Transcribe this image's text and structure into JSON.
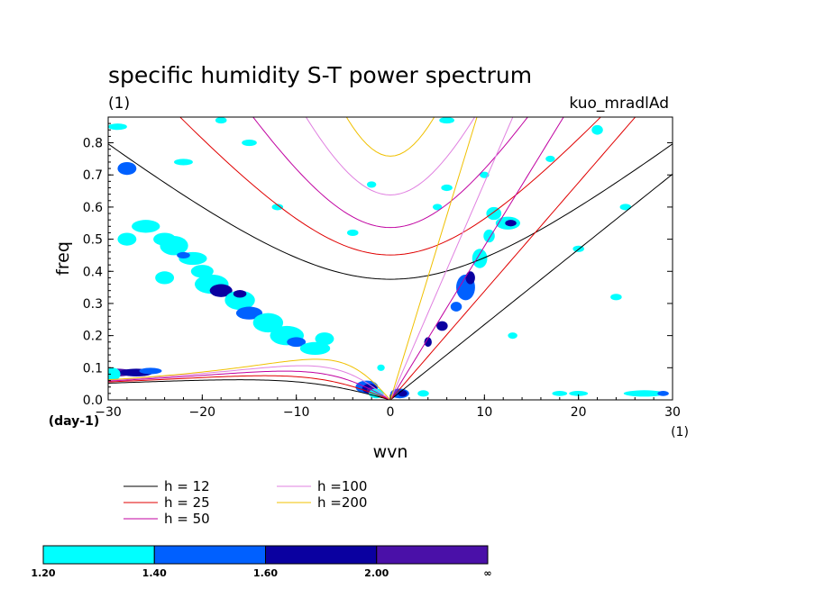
{
  "chart_data": {
    "type": "heatmap",
    "title": "specific humidity S-T power spectrum",
    "subtitle_left": "(1)",
    "subtitle_right": "kuo_mradlAd",
    "xlabel": "wvn",
    "ylabel": "freq",
    "x_unit": "(1)",
    "y_unit": "(day-1)",
    "xlim": [
      -30,
      30
    ],
    "ylim": [
      0,
      0.88
    ],
    "x_ticks": [
      -30,
      -20,
      -10,
      0,
      10,
      20,
      30
    ],
    "x_tick_labels": [
      "−30",
      "−20",
      "−10",
      "0",
      "10",
      "20",
      "30"
    ],
    "y_ticks": [
      0,
      0.1,
      0.2,
      0.3,
      0.4,
      0.5,
      0.6,
      0.7,
      0.8
    ],
    "y_tick_labels": [
      "0.0",
      "0.1",
      "0.2",
      "0.3",
      "0.4",
      "0.5",
      "0.6",
      "0.7",
      "0.8"
    ],
    "contour_levels": [
      {
        "min": "1.20",
        "max": "1.40",
        "color": "#00ffff"
      },
      {
        "min": "1.40",
        "max": "1.60",
        "color": "#0060ff"
      },
      {
        "min": "1.60",
        "max": "2.00",
        "color": "#0a00a0"
      },
      {
        "min": "2.00",
        "max": "∞",
        "color": "#4a10a8"
      }
    ],
    "colorbar_labels": [
      "1.20",
      "1.40",
      "1.60",
      "2.00",
      "∞"
    ],
    "dispersion_curves": [
      {
        "label": "h = 12",
        "h": 12,
        "color": "#000000"
      },
      {
        "label": "h = 25",
        "h": 25,
        "color": "#e00000"
      },
      {
        "label": "h = 50",
        "h": 50,
        "color": "#c000a0"
      },
      {
        "label": "h =100",
        "h": 100,
        "color": "#e080e0"
      },
      {
        "label": "h =200",
        "h": 200,
        "color": "#f0c000"
      }
    ],
    "blobs": [
      {
        "x": -29,
        "y": 0.085,
        "rx": 1.6,
        "ry": 0.012,
        "level": 3
      },
      {
        "x": -27,
        "y": 0.085,
        "rx": 1.8,
        "ry": 0.012,
        "level": 2
      },
      {
        "x": -25.5,
        "y": 0.09,
        "rx": 1.2,
        "ry": 0.01,
        "level": 1
      },
      {
        "x": -29.5,
        "y": 0.08,
        "rx": 0.8,
        "ry": 0.02,
        "level": 0
      },
      {
        "x": -28,
        "y": 0.72,
        "rx": 1.0,
        "ry": 0.02,
        "level": 1
      },
      {
        "x": -26,
        "y": 0.54,
        "rx": 1.5,
        "ry": 0.02,
        "level": 0
      },
      {
        "x": -24,
        "y": 0.5,
        "rx": 1.2,
        "ry": 0.02,
        "level": 0
      },
      {
        "x": -23,
        "y": 0.48,
        "rx": 1.5,
        "ry": 0.03,
        "level": 0
      },
      {
        "x": -21,
        "y": 0.44,
        "rx": 1.5,
        "ry": 0.02,
        "level": 0
      },
      {
        "x": -22,
        "y": 0.45,
        "rx": 0.7,
        "ry": 0.01,
        "level": 1
      },
      {
        "x": -20,
        "y": 0.4,
        "rx": 1.2,
        "ry": 0.02,
        "level": 0
      },
      {
        "x": -19,
        "y": 0.36,
        "rx": 1.8,
        "ry": 0.03,
        "level": 0
      },
      {
        "x": -18,
        "y": 0.34,
        "rx": 1.2,
        "ry": 0.02,
        "level": 2
      },
      {
        "x": -16,
        "y": 0.31,
        "rx": 1.6,
        "ry": 0.03,
        "level": 0
      },
      {
        "x": -16,
        "y": 0.33,
        "rx": 0.7,
        "ry": 0.012,
        "level": 2
      },
      {
        "x": -15,
        "y": 0.27,
        "rx": 1.4,
        "ry": 0.02,
        "level": 1
      },
      {
        "x": -13,
        "y": 0.24,
        "rx": 1.6,
        "ry": 0.03,
        "level": 0
      },
      {
        "x": -11,
        "y": 0.2,
        "rx": 1.8,
        "ry": 0.03,
        "level": 0
      },
      {
        "x": -10,
        "y": 0.18,
        "rx": 1.0,
        "ry": 0.015,
        "level": 1
      },
      {
        "x": -8,
        "y": 0.16,
        "rx": 1.6,
        "ry": 0.02,
        "level": 0
      },
      {
        "x": -7,
        "y": 0.19,
        "rx": 1.0,
        "ry": 0.02,
        "level": 0
      },
      {
        "x": -24,
        "y": 0.38,
        "rx": 1.0,
        "ry": 0.02,
        "level": 0
      },
      {
        "x": -28,
        "y": 0.5,
        "rx": 1.0,
        "ry": 0.02,
        "level": 0
      },
      {
        "x": -2.5,
        "y": 0.04,
        "rx": 1.2,
        "ry": 0.02,
        "level": 1
      },
      {
        "x": -2.2,
        "y": 0.035,
        "rx": 0.8,
        "ry": 0.015,
        "level": 2
      },
      {
        "x": -2,
        "y": 0.03,
        "rx": 0.5,
        "ry": 0.01,
        "level": 3
      },
      {
        "x": -1.5,
        "y": 0.02,
        "rx": 0.8,
        "ry": 0.015,
        "level": 0
      },
      {
        "x": 1,
        "y": 0.02,
        "rx": 1.0,
        "ry": 0.015,
        "level": 1
      },
      {
        "x": 1.3,
        "y": 0.02,
        "rx": 0.5,
        "ry": 0.01,
        "level": 2
      },
      {
        "x": -1,
        "y": 0.1,
        "rx": 0.4,
        "ry": 0.01,
        "level": 0
      },
      {
        "x": 4,
        "y": 0.18,
        "rx": 0.4,
        "ry": 0.015,
        "level": 2
      },
      {
        "x": 5.5,
        "y": 0.23,
        "rx": 0.6,
        "ry": 0.015,
        "level": 2
      },
      {
        "x": 7,
        "y": 0.29,
        "rx": 0.6,
        "ry": 0.015,
        "level": 1
      },
      {
        "x": 8,
        "y": 0.35,
        "rx": 1.0,
        "ry": 0.04,
        "level": 1
      },
      {
        "x": 8.5,
        "y": 0.38,
        "rx": 0.5,
        "ry": 0.02,
        "level": 2
      },
      {
        "x": 9.5,
        "y": 0.44,
        "rx": 0.8,
        "ry": 0.03,
        "level": 0
      },
      {
        "x": 10.5,
        "y": 0.51,
        "rx": 0.6,
        "ry": 0.02,
        "level": 0
      },
      {
        "x": 12.5,
        "y": 0.55,
        "rx": 1.3,
        "ry": 0.02,
        "level": 0
      },
      {
        "x": 12.8,
        "y": 0.55,
        "rx": 0.6,
        "ry": 0.01,
        "level": 2
      },
      {
        "x": 11,
        "y": 0.58,
        "rx": 0.8,
        "ry": 0.02,
        "level": 0
      },
      {
        "x": 5,
        "y": 0.6,
        "rx": 0.5,
        "ry": 0.01,
        "level": 0
      },
      {
        "x": 6,
        "y": 0.87,
        "rx": 0.8,
        "ry": 0.01,
        "level": 0
      },
      {
        "x": 22,
        "y": 0.84,
        "rx": 0.6,
        "ry": 0.015,
        "level": 0
      },
      {
        "x": 24,
        "y": 0.32,
        "rx": 0.6,
        "ry": 0.01,
        "level": 0
      },
      {
        "x": 20,
        "y": 0.47,
        "rx": 0.6,
        "ry": 0.01,
        "level": 0
      },
      {
        "x": 27,
        "y": 0.02,
        "rx": 2.2,
        "ry": 0.01,
        "level": 0
      },
      {
        "x": 29,
        "y": 0.02,
        "rx": 0.6,
        "ry": 0.008,
        "level": 1
      },
      {
        "x": 20,
        "y": 0.02,
        "rx": 1.0,
        "ry": 0.008,
        "level": 0
      },
      {
        "x": 18,
        "y": 0.02,
        "rx": 0.8,
        "ry": 0.008,
        "level": 0
      },
      {
        "x": -22,
        "y": 0.74,
        "rx": 1.0,
        "ry": 0.01,
        "level": 0
      },
      {
        "x": -15,
        "y": 0.8,
        "rx": 0.8,
        "ry": 0.01,
        "level": 0
      },
      {
        "x": -29,
        "y": 0.85,
        "rx": 1.0,
        "ry": 0.01,
        "level": 0
      },
      {
        "x": -18,
        "y": 0.87,
        "rx": 0.6,
        "ry": 0.01,
        "level": 0
      },
      {
        "x": -2,
        "y": 0.67,
        "rx": 0.5,
        "ry": 0.01,
        "level": 0
      },
      {
        "x": 6,
        "y": 0.66,
        "rx": 0.6,
        "ry": 0.01,
        "level": 0
      },
      {
        "x": 10,
        "y": 0.7,
        "rx": 0.5,
        "ry": 0.01,
        "level": 0
      },
      {
        "x": 17,
        "y": 0.75,
        "rx": 0.5,
        "ry": 0.01,
        "level": 0
      },
      {
        "x": -4,
        "y": 0.52,
        "rx": 0.6,
        "ry": 0.01,
        "level": 0
      },
      {
        "x": 13,
        "y": 0.2,
        "rx": 0.5,
        "ry": 0.01,
        "level": 0
      },
      {
        "x": -12,
        "y": 0.6,
        "rx": 0.6,
        "ry": 0.01,
        "level": 0
      },
      {
        "x": 3.5,
        "y": 0.02,
        "rx": 0.6,
        "ry": 0.01,
        "level": 0
      },
      {
        "x": 25,
        "y": 0.6,
        "rx": 0.6,
        "ry": 0.01,
        "level": 0
      }
    ]
  }
}
